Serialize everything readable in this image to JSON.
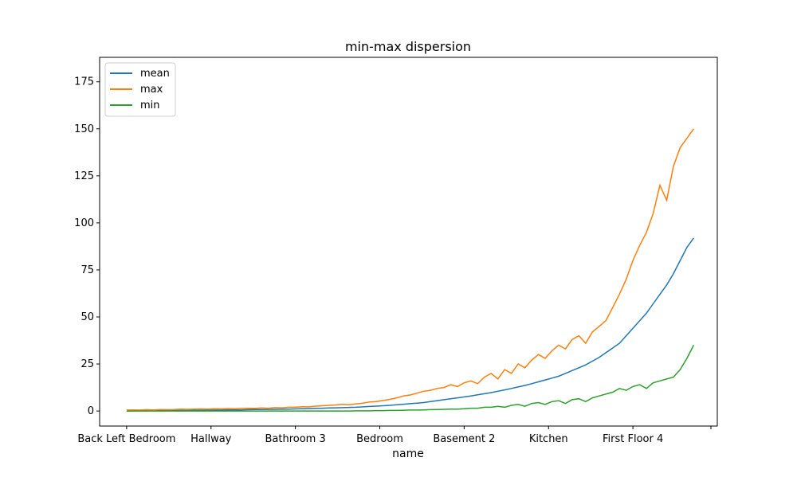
{
  "chart_data": {
    "type": "line",
    "title": "min-max dispersion",
    "xlabel": "name",
    "ylabel": "",
    "ylim": [
      -8,
      188
    ],
    "y_ticks": [
      0,
      25,
      50,
      75,
      100,
      125,
      150,
      175
    ],
    "categories": [
      "Back Left Bedroom",
      "Hallway",
      "Bathroom 3",
      "Bedroom",
      "Basement 2",
      "Kitchen",
      "First Floor 4",
      ""
    ],
    "x": [
      0,
      10,
      20,
      30,
      40,
      50,
      60,
      70,
      80,
      90,
      100,
      110,
      120,
      130,
      140,
      150,
      160,
      170,
      180,
      190,
      200,
      210,
      220,
      230,
      240,
      250,
      260,
      270,
      280,
      290,
      300,
      310,
      320,
      330,
      340,
      350,
      360,
      370,
      380,
      390,
      400,
      410,
      420,
      430,
      440,
      450,
      460,
      470,
      480,
      490,
      500,
      510,
      520,
      530,
      540,
      550,
      560,
      570,
      580,
      590,
      600,
      610,
      620,
      630,
      640,
      650,
      660,
      670,
      680,
      690,
      700,
      710,
      720,
      730,
      740,
      750,
      760,
      770,
      780,
      790,
      800,
      810,
      820,
      830,
      840
    ],
    "legend_position": "upper-left",
    "grid": false,
    "series": [
      {
        "name": "mean",
        "color": "#1f77b4",
        "values": [
          0,
          0.05,
          0.1,
          0.1,
          0.15,
          0.2,
          0.2,
          0.25,
          0.3,
          0.3,
          0.35,
          0.4,
          0.45,
          0.5,
          0.5,
          0.55,
          0.6,
          0.6,
          0.7,
          0.75,
          0.8,
          0.85,
          0.9,
          0.95,
          1.0,
          1.1,
          1.2,
          1.3,
          1.4,
          1.5,
          1.6,
          1.7,
          1.8,
          1.9,
          2.0,
          2.2,
          2.4,
          2.6,
          2.8,
          3.0,
          3.3,
          3.6,
          3.9,
          4.2,
          4.5,
          5.0,
          5.5,
          6.0,
          6.5,
          7.0,
          7.5,
          8.0,
          8.6,
          9.2,
          9.8,
          10.5,
          11.2,
          12.0,
          12.8,
          13.6,
          14.5,
          15.5,
          16.5,
          17.5,
          18.5,
          20.0,
          21.5,
          23.0,
          24.5,
          26.5,
          28.5,
          31.0,
          33.5,
          36.0,
          40.0,
          44.0,
          48.0,
          52.0,
          57.0,
          62.0,
          67.0,
          73.0,
          80.0,
          87.0,
          92.0
        ]
      },
      {
        "name": "max",
        "color": "#ff7f0e",
        "values": [
          0.5,
          0.6,
          0.5,
          0.7,
          0.6,
          0.8,
          0.7,
          0.8,
          1.0,
          0.9,
          1.0,
          1.1,
          1.0,
          1.2,
          1.1,
          1.3,
          1.2,
          1.4,
          1.5,
          1.4,
          1.6,
          1.5,
          1.8,
          1.7,
          2.0,
          2.0,
          2.3,
          2.2,
          2.6,
          2.8,
          3.0,
          3.2,
          3.5,
          3.3,
          3.8,
          4.2,
          4.8,
          5.0,
          5.6,
          6.2,
          7.0,
          8.0,
          8.5,
          9.5,
          10.5,
          11.0,
          12.0,
          12.5,
          14.0,
          13.0,
          15.0,
          16.0,
          14.5,
          18.0,
          20.0,
          17.0,
          22.0,
          20.0,
          25.0,
          23.0,
          27.0,
          30.0,
          28.0,
          32.0,
          35.0,
          33.0,
          38.0,
          40.0,
          36.0,
          42.0,
          45.0,
          48.0,
          55.0,
          62.0,
          70.0,
          80.0,
          88.0,
          95.0,
          105.0,
          120.0,
          112.0,
          130.0,
          140.0,
          145.0,
          150.0
        ]
      },
      {
        "name": "min",
        "color": "#2ca02c",
        "values": [
          0,
          0,
          0,
          0,
          0,
          0,
          0,
          0,
          0,
          0,
          0,
          0,
          0,
          0,
          0,
          0,
          0,
          0,
          0,
          0,
          0,
          0,
          0,
          0,
          0,
          0,
          0,
          0,
          0,
          0,
          0,
          0,
          0,
          0,
          0.1,
          0.1,
          0.1,
          0.2,
          0.2,
          0.3,
          0.3,
          0.4,
          0.5,
          0.5,
          0.6,
          0.7,
          0.8,
          0.9,
          1.0,
          1.0,
          1.2,
          1.5,
          1.5,
          2.0,
          2.0,
          2.5,
          2.0,
          3.0,
          3.5,
          2.5,
          4.0,
          4.5,
          3.5,
          5.0,
          5.5,
          4.0,
          6.0,
          6.5,
          5.0,
          7.0,
          8.0,
          9.0,
          10.0,
          12.0,
          11.0,
          13.0,
          14.0,
          12.0,
          15.0,
          16.0,
          17.0,
          18.0,
          22.0,
          28.0,
          35.0
        ]
      }
    ]
  }
}
